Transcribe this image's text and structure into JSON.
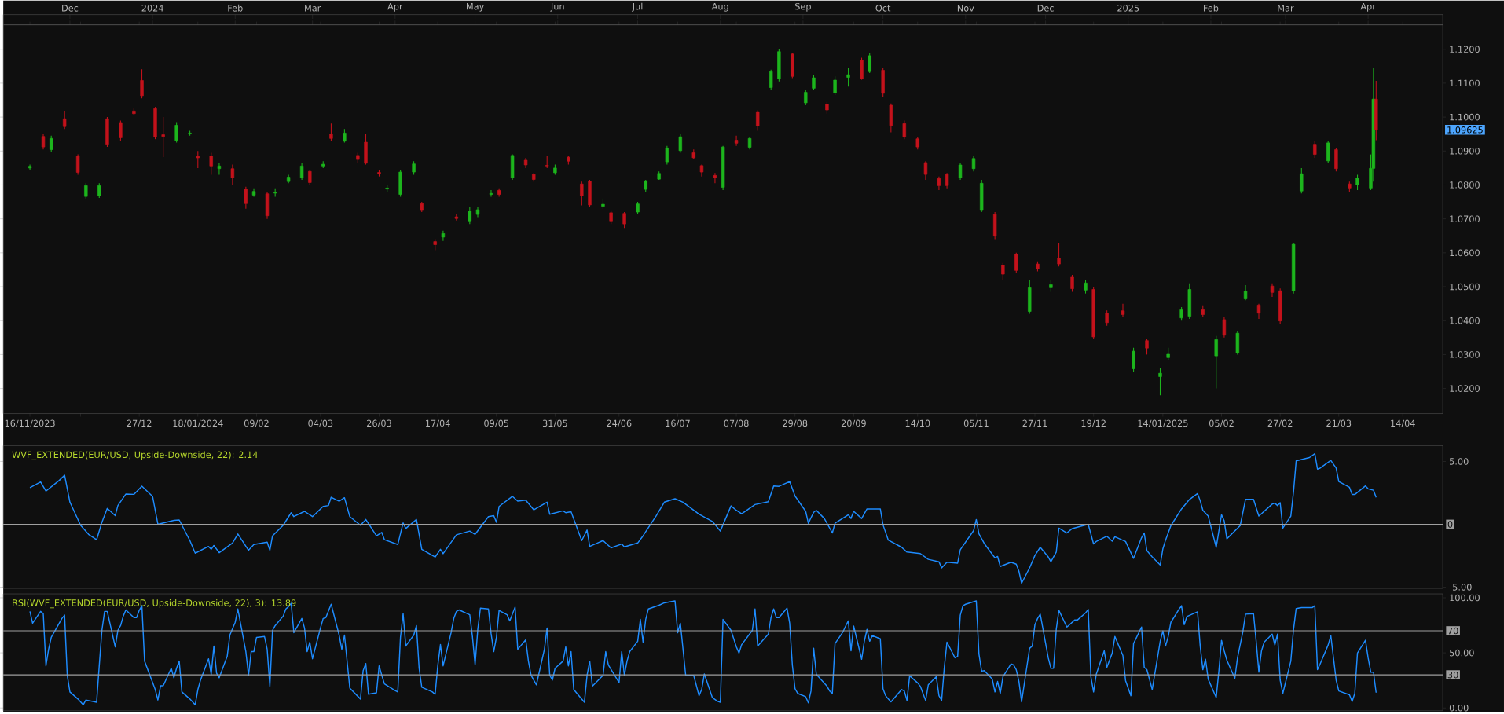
{
  "chart_data": [
    {
      "type": "candlestick",
      "x": [
        "2023-11-16",
        "2023-11-21",
        "2023-11-24",
        "2023-11-29",
        "2023-12-04",
        "2023-12-07",
        "2023-12-12",
        "2023-12-15",
        "2023-12-20",
        "2023-12-25",
        "2023-12-28",
        "2024-01-02",
        "2024-01-05",
        "2024-01-10",
        "2024-01-15",
        "2024-01-18",
        "2024-01-23",
        "2024-01-26",
        "2024-01-31",
        "2024-02-05",
        "2024-02-08",
        "2024-02-13",
        "2024-02-16",
        "2024-02-21",
        "2024-02-26",
        "2024-02-29",
        "2024-03-05",
        "2024-03-08",
        "2024-03-13",
        "2024-03-18",
        "2024-03-21",
        "2024-03-26",
        "2024-03-29",
        "2024-04-03",
        "2024-04-08",
        "2024-04-11",
        "2024-04-16",
        "2024-04-19",
        "2024-04-24",
        "2024-04-29",
        "2024-05-02",
        "2024-05-07",
        "2024-05-10",
        "2024-05-15",
        "2024-05-20",
        "2024-05-23",
        "2024-05-28",
        "2024-05-31",
        "2024-06-05",
        "2024-06-10",
        "2024-06-13",
        "2024-06-18",
        "2024-06-21",
        "2024-06-26",
        "2024-07-01",
        "2024-07-04",
        "2024-07-09",
        "2024-07-12",
        "2024-07-17",
        "2024-07-22",
        "2024-07-25",
        "2024-07-30",
        "2024-08-02",
        "2024-08-07",
        "2024-08-12",
        "2024-08-15",
        "2024-08-20",
        "2024-08-23",
        "2024-08-28",
        "2024-09-02",
        "2024-09-05",
        "2024-09-10",
        "2024-09-13",
        "2024-09-18",
        "2024-09-23",
        "2024-09-26",
        "2024-10-01",
        "2024-10-04",
        "2024-10-09",
        "2024-10-14",
        "2024-10-17",
        "2024-10-22",
        "2024-10-25",
        "2024-10-30",
        "2024-11-04",
        "2024-11-07",
        "2024-11-12",
        "2024-11-15",
        "2024-11-20",
        "2024-11-25",
        "2024-11-28",
        "2024-12-03",
        "2024-12-06",
        "2024-12-11",
        "2024-12-16",
        "2024-12-19",
        "2024-12-24",
        "2024-12-30",
        "2025-01-03",
        "2025-01-08",
        "2025-01-13",
        "2025-01-16",
        "2025-01-21",
        "2025-01-24",
        "2025-01-29",
        "2025-02-03",
        "2025-02-06",
        "2025-02-11",
        "2025-02-14",
        "2025-02-19",
        "2025-02-24",
        "2025-02-27",
        "2025-03-04",
        "2025-03-07",
        "2025-03-12",
        "2025-03-17",
        "2025-03-20",
        "2025-03-25",
        "2025-03-28",
        "2025-04-02",
        "2025-04-03",
        "2025-04-04"
      ],
      "ohlc": [
        [
          1.085,
          1.086,
          1.0845,
          1.0855
        ],
        [
          1.0943,
          1.095,
          1.0905,
          1.0912
        ],
        [
          1.0904,
          1.0945,
          1.0898,
          1.0937
        ],
        [
          1.0995,
          1.1019,
          1.0965,
          1.0972
        ],
        [
          1.0885,
          1.089,
          1.083,
          1.0837
        ],
        [
          1.0766,
          1.0805,
          1.076,
          1.0798
        ],
        [
          1.0768,
          1.0805,
          1.0762,
          1.0798
        ],
        [
          1.0995,
          1.1,
          1.0912,
          1.092
        ],
        [
          1.0984,
          1.099,
          1.093,
          1.0939
        ],
        [
          1.1018,
          1.1025,
          1.1005,
          1.101
        ],
        [
          1.1108,
          1.1141,
          1.1055,
          1.1063
        ],
        [
          1.1025,
          1.103,
          1.0935,
          1.0941
        ],
        [
          1.0948,
          1.1,
          1.0882,
          1.0943
        ],
        [
          1.0931,
          1.0985,
          1.0925,
          1.0976
        ],
        [
          1.0952,
          1.096,
          1.0945,
          1.0953
        ],
        [
          1.0884,
          1.09,
          1.085,
          1.088
        ],
        [
          1.0885,
          1.0895,
          1.083,
          1.0856
        ],
        [
          1.0848,
          1.0865,
          1.083,
          1.0856
        ],
        [
          1.0848,
          1.086,
          1.08,
          1.0821
        ],
        [
          1.0788,
          1.0795,
          1.073,
          1.0745
        ],
        [
          1.077,
          1.079,
          1.0765,
          1.0781
        ],
        [
          1.0774,
          1.078,
          1.07,
          1.0709
        ],
        [
          1.0776,
          1.079,
          1.0765,
          1.0779
        ],
        [
          1.081,
          1.083,
          1.0805,
          1.0823
        ],
        [
          1.0821,
          1.0865,
          1.0815,
          1.0856
        ],
        [
          1.084,
          1.0845,
          1.08,
          1.0807
        ],
        [
          1.0856,
          1.087,
          1.085,
          1.0861
        ],
        [
          1.095,
          1.0981,
          1.093,
          1.0937
        ],
        [
          1.0929,
          1.0965,
          1.0925,
          1.0953
        ],
        [
          1.0887,
          1.0895,
          1.0865,
          1.0875
        ],
        [
          1.0926,
          1.095,
          1.086,
          1.0864
        ],
        [
          1.0837,
          1.0845,
          1.0825,
          1.0833
        ],
        [
          1.0788,
          1.08,
          1.078,
          1.0791
        ],
        [
          1.0772,
          1.0845,
          1.0765,
          1.0838
        ],
        [
          1.0838,
          1.087,
          1.083,
          1.0862
        ],
        [
          1.0745,
          1.075,
          1.072,
          1.0727
        ],
        [
          1.0633,
          1.064,
          1.0608,
          1.0624
        ],
        [
          1.0646,
          1.0665,
          1.0635,
          1.0657
        ],
        [
          1.0706,
          1.0715,
          1.0695,
          1.0701
        ],
        [
          1.0694,
          1.0735,
          1.0685,
          1.0723
        ],
        [
          1.0713,
          1.0735,
          1.0705,
          1.0727
        ],
        [
          1.0772,
          1.0785,
          1.0765,
          1.0775
        ],
        [
          1.0784,
          1.079,
          1.0765,
          1.0772
        ],
        [
          1.0821,
          1.089,
          1.0815,
          1.0887
        ],
        [
          1.0873,
          1.088,
          1.085,
          1.0859
        ],
        [
          1.0831,
          1.0835,
          1.081,
          1.0816
        ],
        [
          1.0858,
          1.0885,
          1.085,
          1.0856
        ],
        [
          1.0836,
          1.086,
          1.083,
          1.085
        ],
        [
          1.0882,
          1.0885,
          1.086,
          1.087
        ],
        [
          1.0803,
          1.081,
          1.074,
          1.0768
        ],
        [
          1.0811,
          1.0815,
          1.0735,
          1.0741
        ],
        [
          1.0737,
          1.076,
          1.073,
          1.0743
        ],
        [
          1.0718,
          1.0725,
          1.0685,
          1.0694
        ],
        [
          1.0716,
          1.072,
          1.0673,
          1.0685
        ],
        [
          1.072,
          1.075,
          1.0715,
          1.0744
        ],
        [
          1.0787,
          1.0815,
          1.078,
          1.0812
        ],
        [
          1.0817,
          1.084,
          1.0815,
          1.0834
        ],
        [
          1.0868,
          1.0915,
          1.086,
          1.0909
        ],
        [
          1.0901,
          1.095,
          1.0895,
          1.0942
        ],
        [
          1.0895,
          1.0905,
          1.0875,
          1.088
        ],
        [
          1.0857,
          1.086,
          1.0825,
          1.0838
        ],
        [
          1.0828,
          1.0835,
          1.0805,
          1.0821
        ],
        [
          1.0793,
          1.0915,
          1.0785,
          1.0912
        ],
        [
          1.0932,
          1.0945,
          1.0915,
          1.0923
        ],
        [
          1.0911,
          1.094,
          1.0905,
          1.0937
        ],
        [
          1.1016,
          1.102,
          1.096,
          1.0974
        ],
        [
          1.1087,
          1.114,
          1.108,
          1.1134
        ],
        [
          1.1113,
          1.12,
          1.1105,
          1.1193
        ],
        [
          1.1186,
          1.119,
          1.1115,
          1.112
        ],
        [
          1.1042,
          1.108,
          1.1035,
          1.1073
        ],
        [
          1.1085,
          1.1125,
          1.108,
          1.1116
        ],
        [
          1.1038,
          1.1045,
          1.101,
          1.1021
        ],
        [
          1.1072,
          1.112,
          1.1065,
          1.1109
        ],
        [
          1.1117,
          1.1145,
          1.109,
          1.1125
        ],
        [
          1.1167,
          1.1175,
          1.111,
          1.1113
        ],
        [
          1.1134,
          1.119,
          1.113,
          1.1181
        ],
        [
          1.1138,
          1.1145,
          1.106,
          1.107
        ],
        [
          1.1035,
          1.104,
          1.0955,
          1.0975
        ],
        [
          1.0981,
          1.099,
          1.0935,
          1.0941
        ],
        [
          1.0936,
          1.094,
          1.0905,
          1.0912
        ],
        [
          1.0866,
          1.087,
          1.0815,
          1.0831
        ],
        [
          1.0819,
          1.0825,
          1.0785,
          1.0798
        ],
        [
          1.0831,
          1.0835,
          1.079,
          1.0798
        ],
        [
          1.0821,
          1.0865,
          1.0815,
          1.0859
        ],
        [
          1.0848,
          1.0885,
          1.084,
          1.0878
        ],
        [
          1.0727,
          1.0815,
          1.072,
          1.0805
        ],
        [
          1.0713,
          1.072,
          1.064,
          1.0649
        ],
        [
          1.0563,
          1.057,
          1.052,
          1.0537
        ],
        [
          1.0595,
          1.06,
          1.054,
          1.0548
        ],
        [
          1.0427,
          1.052,
          1.042,
          1.0497
        ],
        [
          1.0567,
          1.0575,
          1.0545,
          1.0553
        ],
        [
          1.0497,
          1.052,
          1.0485,
          1.0506
        ],
        [
          1.0584,
          1.063,
          1.056,
          1.0567
        ],
        [
          1.0528,
          1.0535,
          1.0485,
          1.0494
        ],
        [
          1.049,
          1.052,
          1.048,
          1.0511
        ],
        [
          1.0492,
          1.05,
          1.0345,
          1.0352
        ],
        [
          1.0422,
          1.043,
          1.0385,
          1.0394
        ],
        [
          1.0429,
          1.045,
          1.041,
          1.0418
        ],
        [
          1.0258,
          1.032,
          1.025,
          1.031
        ],
        [
          1.0341,
          1.0345,
          1.03,
          1.0319
        ],
        [
          1.0235,
          1.026,
          1.018,
          1.0245
        ],
        [
          1.0291,
          1.032,
          1.0285,
          1.0301
        ],
        [
          1.0408,
          1.044,
          1.04,
          1.0432
        ],
        [
          1.0413,
          1.051,
          1.0405,
          1.0492
        ],
        [
          1.0432,
          1.0445,
          1.041,
          1.0418
        ],
        [
          1.0296,
          1.0355,
          1.02,
          1.0344
        ],
        [
          1.0403,
          1.041,
          1.035,
          1.0357
        ],
        [
          1.0305,
          1.037,
          1.03,
          1.0363
        ],
        [
          1.0464,
          1.0505,
          1.046,
          1.0487
        ],
        [
          1.0446,
          1.045,
          1.0405,
          1.0422
        ],
        [
          1.0502,
          1.051,
          1.047,
          1.0483
        ],
        [
          1.0488,
          1.0495,
          1.039,
          1.0399
        ],
        [
          1.0488,
          1.063,
          1.048,
          1.0625
        ],
        [
          1.0782,
          1.085,
          1.0775,
          1.0833
        ],
        [
          1.092,
          1.093,
          1.088,
          1.089
        ],
        [
          1.0871,
          1.093,
          1.0865,
          1.0924
        ],
        [
          1.0904,
          1.091,
          1.084,
          1.0848
        ],
        [
          1.0803,
          1.081,
          1.078,
          1.0791
        ],
        [
          1.0801,
          1.083,
          1.0785,
          1.082
        ],
        [
          1.0791,
          1.089,
          1.0785,
          1.0849
        ],
        [
          1.0849,
          1.1145,
          1.081,
          1.1053
        ],
        [
          1.1053,
          1.1107,
          1.0932,
          1.09625
        ]
      ],
      "xlim": [
        "2023-11-06",
        "2025-04-29"
      ],
      "xticks": [
        {
          "value": "2023-11-16",
          "label": "16/11/2023"
        },
        {
          "value": "2023-12-05",
          "label": null
        },
        {
          "value": "2023-12-27",
          "label": "27/12"
        },
        {
          "value": "2024-01-18",
          "label": "18/01/2024"
        },
        {
          "value": "2024-02-09",
          "label": "09/02"
        },
        {
          "value": "2024-03-04",
          "label": "04/03"
        },
        {
          "value": "2024-03-26",
          "label": "26/03"
        },
        {
          "value": "2024-04-17",
          "label": "17/04"
        },
        {
          "value": "2024-05-09",
          "label": "09/05"
        },
        {
          "value": "2024-05-31",
          "label": "31/05"
        },
        {
          "value": "2024-06-24",
          "label": "24/06"
        },
        {
          "value": "2024-07-16",
          "label": "16/07"
        },
        {
          "value": "2024-08-07",
          "label": "07/08"
        },
        {
          "value": "2024-08-29",
          "label": "29/08"
        },
        {
          "value": "2024-09-20",
          "label": "20/09"
        },
        {
          "value": "2024-10-14",
          "label": "14/10"
        },
        {
          "value": "2024-11-05",
          "label": "05/11"
        },
        {
          "value": "2024-11-27",
          "label": "27/11"
        },
        {
          "value": "2024-12-19",
          "label": "19/12"
        },
        {
          "value": "2025-01-14",
          "label": "14/01/2025"
        },
        {
          "value": "2025-02-05",
          "label": "05/02"
        },
        {
          "value": "2025-02-27",
          "label": "27/02"
        },
        {
          "value": "2025-03-21",
          "label": "21/03"
        },
        {
          "value": "2025-04-14",
          "label": "14/04"
        }
      ],
      "x2lim": [
        "2023-11-06",
        "2025-04-29"
      ],
      "x2ticks": [
        {
          "value": "2023-12-01",
          "label": "Dec"
        },
        {
          "value": "2024-01-01",
          "label": "2024"
        },
        {
          "value": "2024-02-01",
          "label": "Feb"
        },
        {
          "value": "2024-03-01",
          "label": "Mar"
        },
        {
          "value": "2024-04-01",
          "label": "Apr"
        },
        {
          "value": "2024-05-01",
          "label": "May"
        },
        {
          "value": "2024-06-01",
          "label": "Jun"
        },
        {
          "value": "2024-07-01",
          "label": "Jul"
        },
        {
          "value": "2024-08-01",
          "label": "Aug"
        },
        {
          "value": "2024-09-01",
          "label": "Sep"
        },
        {
          "value": "2024-10-01",
          "label": "Oct"
        },
        {
          "value": "2024-11-01",
          "label": "Nov"
        },
        {
          "value": "2024-12-01",
          "label": "Dec"
        },
        {
          "value": "2025-01-01",
          "label": "2025"
        },
        {
          "value": "2025-02-01",
          "label": "Feb"
        },
        {
          "value": "2025-03-01",
          "label": "Mar"
        },
        {
          "value": "2025-04-01",
          "label": "Apr"
        }
      ],
      "ylim": [
        1.0126,
        1.1272
      ],
      "yticks": [
        {
          "value": 1.02,
          "label": "1.0200"
        },
        {
          "value": 1.03,
          "label": "1.0300"
        },
        {
          "value": 1.04,
          "label": "1.0400"
        },
        {
          "value": 1.05,
          "label": "1.0500"
        },
        {
          "value": 1.06,
          "label": "1.0600"
        },
        {
          "value": 1.07,
          "label": "1.0700"
        },
        {
          "value": 1.08,
          "label": "1.0800"
        },
        {
          "value": 1.09,
          "label": "1.0900"
        },
        {
          "value": 1.1,
          "label": "1.1000"
        },
        {
          "value": 1.11,
          "label": "1.1100"
        },
        {
          "value": 1.12,
          "label": "1.1200"
        }
      ],
      "annotations": [
        "1.09625"
      ]
    },
    {
      "type": "line",
      "title": "WVF_EXTENDED(EUR/USD, Upside-Downside, 22): 2.14",
      "color": "#1E8CFF",
      "x": [
        "2023-11-16",
        "2023-11-20",
        "2023-11-22",
        "2023-11-27",
        "2023-11-29",
        "2023-12-01",
        "2023-12-05",
        "2023-12-08",
        "2023-12-11",
        "2023-12-13",
        "2023-12-15",
        "2023-12-18",
        "2023-12-19",
        "2023-12-22",
        "2023-12-25",
        "2023-12-28",
        "2024-01-01",
        "2024-01-03",
        "2024-01-09",
        "2024-01-11",
        "2024-01-15",
        "2024-01-17",
        "2024-01-22",
        "2024-01-23",
        "2024-01-24",
        "2024-01-26",
        "2024-01-31",
        "2024-02-02",
        "2024-02-06",
        "2024-02-08",
        "2024-02-13",
        "2024-02-14",
        "2024-02-15",
        "2024-02-19",
        "2024-02-22",
        "2024-02-23",
        "2024-02-27",
        "2024-03-01",
        "2024-03-05",
        "2024-03-07",
        "2024-03-08",
        "2024-03-11",
        "2024-03-13",
        "2024-03-15",
        "2024-03-19",
        "2024-03-21",
        "2024-03-25",
        "2024-03-27",
        "2024-03-28",
        "2024-04-02",
        "2024-04-04",
        "2024-04-05",
        "2024-04-09",
        "2024-04-11",
        "2024-04-16",
        "2024-04-18",
        "2024-04-19",
        "2024-04-24",
        "2024-04-29",
        "2024-05-01",
        "2024-05-06",
        "2024-05-08",
        "2024-05-09",
        "2024-05-10",
        "2024-05-15",
        "2024-05-17",
        "2024-05-20",
        "2024-05-23",
        "2024-05-28",
        "2024-05-29",
        "2024-06-03",
        "2024-06-04",
        "2024-06-06",
        "2024-06-10",
        "2024-06-12",
        "2024-06-13",
        "2024-06-18",
        "2024-06-21",
        "2024-06-25",
        "2024-06-26",
        "2024-07-01",
        "2024-07-03",
        "2024-07-08",
        "2024-07-11",
        "2024-07-15",
        "2024-07-18",
        "2024-07-24",
        "2024-07-29",
        "2024-08-01",
        "2024-08-02",
        "2024-08-05",
        "2024-08-07",
        "2024-08-09",
        "2024-08-14",
        "2024-08-19",
        "2024-08-21",
        "2024-08-23",
        "2024-08-27",
        "2024-08-29",
        "2024-09-02",
        "2024-09-03",
        "2024-09-05",
        "2024-09-06",
        "2024-09-09",
        "2024-09-12",
        "2024-09-13",
        "2024-09-18",
        "2024-09-19",
        "2024-09-20",
        "2024-09-23",
        "2024-09-25",
        "2024-09-30",
        "2024-10-01",
        "2024-10-03",
        "2024-10-08",
        "2024-10-10",
        "2024-10-15",
        "2024-10-18",
        "2024-10-22",
        "2024-10-23",
        "2024-10-25",
        "2024-10-29",
        "2024-10-30",
        "2024-11-04",
        "2024-11-05",
        "2024-11-06",
        "2024-11-08",
        "2024-11-12",
        "2024-11-13",
        "2024-11-14",
        "2024-11-18",
        "2024-11-20",
        "2024-11-21",
        "2024-11-22",
        "2024-11-25",
        "2024-11-27",
        "2024-11-29",
        "2024-12-02",
        "2024-12-03",
        "2024-12-05",
        "2024-12-06",
        "2024-12-09",
        "2024-12-11",
        "2024-12-17",
        "2024-12-19",
        "2024-12-20",
        "2024-12-24",
        "2024-12-26",
        "2024-12-27",
        "2024-12-31",
        "2025-01-03",
        "2025-01-06",
        "2025-01-07",
        "2025-01-08",
        "2025-01-10",
        "2025-01-13",
        "2025-01-14",
        "2025-01-15",
        "2025-01-17",
        "2025-01-21",
        "2025-01-24",
        "2025-01-27",
        "2025-01-28",
        "2025-01-29",
        "2025-01-31",
        "2025-02-03",
        "2025-02-05",
        "2025-02-06",
        "2025-02-07",
        "2025-02-12",
        "2025-02-14",
        "2025-02-17",
        "2025-02-19",
        "2025-02-24",
        "2025-02-25",
        "2025-02-26",
        "2025-02-27",
        "2025-02-28",
        "2025-03-03",
        "2025-03-04",
        "2025-03-05",
        "2025-03-10",
        "2025-03-12",
        "2025-03-13",
        "2025-03-14",
        "2025-03-18",
        "2025-03-20",
        "2025-03-21",
        "2025-03-25",
        "2025-03-26",
        "2025-03-27",
        "2025-03-31",
        "2025-04-01",
        "2025-04-03",
        "2025-04-04"
      ],
      "values": [
        2.91,
        3.37,
        2.64,
        3.49,
        3.91,
        1.76,
        -0.08,
        -0.8,
        -1.23,
        0.15,
        1.26,
        0.69,
        1.49,
        2.41,
        2.38,
        3.03,
        2.22,
        0,
        0.31,
        0.34,
        -1.3,
        -2.3,
        -1.76,
        -1.99,
        -1.69,
        -2.26,
        -1.49,
        -0.77,
        -2.07,
        -1.61,
        -1.42,
        -2.07,
        -0.92,
        -0.08,
        0.92,
        0.61,
        1.03,
        0.61,
        1.42,
        1.49,
        2.15,
        1.84,
        2.11,
        0.61,
        -0.08,
        0.38,
        -0.92,
        -0.65,
        -1.23,
        -1.61,
        0.11,
        -0.34,
        0.38,
        -1.99,
        -2.61,
        -1.99,
        -2.34,
        -0.84,
        -0.54,
        -0.8,
        0.61,
        0.69,
        0.15,
        1.42,
        2.22,
        1.84,
        1.92,
        1.15,
        1.76,
        0.8,
        1.07,
        0.92,
        1.0,
        -1.3,
        -0.46,
        -1.76,
        -1.3,
        -1.88,
        -1.57,
        -1.8,
        -1.49,
        -0.92,
        0.69,
        1.76,
        2.03,
        1.76,
        0.8,
        0.23,
        -0.54,
        -0.04,
        1.46,
        1.11,
        0.84,
        1.57,
        1.79,
        3.05,
        3.02,
        3.4,
        2.25,
        1.03,
        0.08,
        0.95,
        1.11,
        0.46,
        -0.69,
        0.08,
        0.76,
        0.46,
        1.03,
        0.46,
        1.22,
        1.22,
        -0.04,
        -1.26,
        -1.83,
        -2.21,
        -2.33,
        -2.79,
        -2.98,
        -3.47,
        -3.02,
        -3.09,
        -2.02,
        -0.5,
        0.38,
        -0.76,
        -1.53,
        -2.67,
        -2.56,
        -3.36,
        -3.02,
        -3.17,
        -3.74,
        -4.69,
        -3.47,
        -2.48,
        -1.83,
        -2.6,
        -2.98,
        -2.21,
        -0.31,
        -0.69,
        -0.34,
        0,
        -1.56,
        -1.37,
        -0.95,
        -1.34,
        -0.99,
        -1.37,
        -2.71,
        -1.07,
        -0.69,
        -2.1,
        -2.6,
        -3.24,
        -1.95,
        -1.26,
        -0.11,
        1.22,
        1.98,
        2.44,
        1.87,
        1.11,
        0.65,
        -1.83,
        0.76,
        0.27,
        -1.15,
        -0.11,
        1.98,
        1.98,
        0.65,
        1.6,
        1.68,
        1.49,
        1.72,
        -0.31,
        0.65,
        2.56,
        5.04,
        5.31,
        5.61,
        4.39,
        4.47,
        5.08,
        4.47,
        3.4,
        2.94,
        2.37,
        2.37,
        3.05,
        2.82,
        2.71,
        2.14
      ],
      "xlim": [
        "2023-11-06",
        "2025-04-29"
      ],
      "ylim": [
        -5.1,
        6.25
      ],
      "yticks": [
        {
          "value": -5,
          "label": "-5.00"
        },
        {
          "value": 5,
          "label": "5.00"
        }
      ],
      "ref_lines": [
        {
          "axis": "y",
          "value": 0,
          "label": "0",
          "color": "#A0A0A0"
        }
      ],
      "tick_labels": "y"
    },
    {
      "type": "line",
      "title": "RSI(WVF_EXTENDED(EUR/USD, Upside-Downside, 22), 3): 13.89",
      "color": "#1E8CFF",
      "x": [
        "2023-11-16",
        "2023-11-17",
        "2023-11-20",
        "2023-11-21",
        "2023-11-22",
        "2023-11-23",
        "2023-11-24",
        "2023-11-28",
        "2023-11-29",
        "2023-11-30",
        "2023-12-01",
        "2023-12-04",
        "2023-12-06",
        "2023-12-07",
        "2023-12-11",
        "2023-12-12",
        "2023-12-13",
        "2023-12-14",
        "2023-12-15",
        "2023-12-18",
        "2023-12-19",
        "2023-12-20",
        "2023-12-21",
        "2023-12-22",
        "2023-12-25",
        "2023-12-26",
        "2023-12-27",
        "2023-12-28",
        "2023-12-29",
        "2024-01-02",
        "2024-01-03",
        "2024-01-04",
        "2024-01-05",
        "2024-01-08",
        "2024-01-09",
        "2024-01-10",
        "2024-01-11",
        "2024-01-12",
        "2024-01-15",
        "2024-01-17",
        "2024-01-18",
        "2024-01-19",
        "2024-01-22",
        "2024-01-23",
        "2024-01-24",
        "2024-01-25",
        "2024-01-26",
        "2024-01-29",
        "2024-01-30",
        "2024-02-01",
        "2024-02-02",
        "2024-02-05",
        "2024-02-06",
        "2024-02-07",
        "2024-02-08",
        "2024-02-09",
        "2024-02-12",
        "2024-02-13",
        "2024-02-14",
        "2024-02-15",
        "2024-02-16",
        "2024-02-19",
        "2024-02-20",
        "2024-02-21",
        "2024-02-22",
        "2024-02-23",
        "2024-02-26",
        "2024-02-27",
        "2024-02-28",
        "2024-02-29",
        "2024-03-01",
        "2024-03-04",
        "2024-03-05",
        "2024-03-06",
        "2024-03-08",
        "2024-03-11",
        "2024-03-12",
        "2024-03-13",
        "2024-03-15",
        "2024-03-19",
        "2024-03-20",
        "2024-03-21",
        "2024-03-22",
        "2024-03-25",
        "2024-03-26",
        "2024-03-27",
        "2024-03-28",
        "2024-04-01",
        "2024-04-02",
        "2024-04-03",
        "2024-04-04",
        "2024-04-05",
        "2024-04-08",
        "2024-04-09",
        "2024-04-10",
        "2024-04-11",
        "2024-04-15",
        "2024-04-16",
        "2024-04-17",
        "2024-04-18",
        "2024-04-19",
        "2024-04-22",
        "2024-04-23",
        "2024-04-24",
        "2024-04-25",
        "2024-04-29",
        "2024-04-30",
        "2024-05-01",
        "2024-05-02",
        "2024-05-03",
        "2024-05-06",
        "2024-05-07",
        "2024-05-08",
        "2024-05-09",
        "2024-05-10",
        "2024-05-13",
        "2024-05-14",
        "2024-05-16",
        "2024-05-17",
        "2024-05-20",
        "2024-05-21",
        "2024-05-22",
        "2024-05-24",
        "2024-05-27",
        "2024-05-28",
        "2024-05-29",
        "2024-05-30",
        "2024-05-31",
        "2024-06-03",
        "2024-06-04",
        "2024-06-05",
        "2024-06-06",
        "2024-06-07",
        "2024-06-11",
        "2024-06-12",
        "2024-06-13",
        "2024-06-14",
        "2024-06-18",
        "2024-06-19",
        "2024-06-20",
        "2024-06-24",
        "2024-06-25",
        "2024-06-26",
        "2024-06-27",
        "2024-06-28",
        "2024-07-01",
        "2024-07-02",
        "2024-07-03",
        "2024-07-04",
        "2024-07-05",
        "2024-07-09",
        "2024-07-11",
        "2024-07-15",
        "2024-07-16",
        "2024-07-17",
        "2024-07-19",
        "2024-07-22",
        "2024-07-24",
        "2024-07-25",
        "2024-07-26",
        "2024-07-29",
        "2024-07-31",
        "2024-08-01",
        "2024-08-02",
        "2024-08-05",
        "2024-08-07",
        "2024-08-08",
        "2024-08-09",
        "2024-08-13",
        "2024-08-14",
        "2024-08-15",
        "2024-08-19",
        "2024-08-20",
        "2024-08-21",
        "2024-08-22",
        "2024-08-23",
        "2024-08-26",
        "2024-08-27",
        "2024-08-28",
        "2024-08-29",
        "2024-08-30",
        "2024-09-02",
        "2024-09-03",
        "2024-09-04",
        "2024-09-05",
        "2024-09-06",
        "2024-09-10",
        "2024-09-11",
        "2024-09-12",
        "2024-09-13",
        "2024-09-16",
        "2024-09-17",
        "2024-09-18",
        "2024-09-19",
        "2024-09-20",
        "2024-09-23",
        "2024-09-24",
        "2024-09-25",
        "2024-09-26",
        "2024-09-27",
        "2024-09-30",
        "2024-10-01",
        "2024-10-02",
        "2024-10-03",
        "2024-10-04",
        "2024-10-08",
        "2024-10-09",
        "2024-10-10",
        "2024-10-11",
        "2024-10-14",
        "2024-10-15",
        "2024-10-16",
        "2024-10-17",
        "2024-10-18",
        "2024-10-21",
        "2024-10-22",
        "2024-10-23",
        "2024-10-24",
        "2024-10-25",
        "2024-10-28",
        "2024-10-29",
        "2024-10-30",
        "2024-10-31",
        "2024-11-01",
        "2024-11-05",
        "2024-11-06",
        "2024-11-07",
        "2024-11-08",
        "2024-11-11",
        "2024-11-12",
        "2024-11-13",
        "2024-11-14",
        "2024-11-15",
        "2024-11-18",
        "2024-11-19",
        "2024-11-20",
        "2024-11-21",
        "2024-11-22",
        "2024-11-25",
        "2024-11-26",
        "2024-11-27",
        "2024-11-28",
        "2024-11-29",
        "2024-12-02",
        "2024-12-03",
        "2024-12-04",
        "2024-12-05",
        "2024-12-06",
        "2024-12-09",
        "2024-12-10",
        "2024-12-12",
        "2024-12-13",
        "2024-12-16",
        "2024-12-17",
        "2024-12-18",
        "2024-12-19",
        "2024-12-20",
        "2024-12-23",
        "2024-12-24",
        "2024-12-26",
        "2024-12-27",
        "2024-12-30",
        "2024-12-31",
        "2025-01-02",
        "2025-01-03",
        "2025-01-06",
        "2025-01-07",
        "2025-01-08",
        "2025-01-10",
        "2025-01-13",
        "2025-01-14",
        "2025-01-15",
        "2025-01-16",
        "2025-01-17",
        "2025-01-20",
        "2025-01-21",
        "2025-01-22",
        "2025-01-23",
        "2025-01-27",
        "2025-01-28",
        "2025-01-29",
        "2025-01-30",
        "2025-01-31",
        "2025-02-03",
        "2025-02-04",
        "2025-02-05",
        "2025-02-06",
        "2025-02-07",
        "2025-02-10",
        "2025-02-11",
        "2025-02-13",
        "2025-02-14",
        "2025-02-17",
        "2025-02-18",
        "2025-02-19",
        "2025-02-20",
        "2025-02-21",
        "2025-02-24",
        "2025-02-25",
        "2025-02-26",
        "2025-02-27",
        "2025-02-28",
        "2025-03-03",
        "2025-03-04",
        "2025-03-05",
        "2025-03-07",
        "2025-03-11",
        "2025-03-12",
        "2025-03-13",
        "2025-03-14",
        "2025-03-17",
        "2025-03-18",
        "2025-03-19",
        "2025-03-20",
        "2025-03-21",
        "2025-03-25",
        "2025-03-26",
        "2025-03-27",
        "2025-03-28",
        "2025-03-31",
        "2025-04-01",
        "2025-04-02",
        "2025-04-03",
        "2025-04-04"
      ],
      "values": [
        87.6,
        76.9,
        87.6,
        85.5,
        38.2,
        53.2,
        64.0,
        81.2,
        84.2,
        29.6,
        14.5,
        8.1,
        2.9,
        7.2,
        5.1,
        38.2,
        70.4,
        87.6,
        87.6,
        55.4,
        70.4,
        74.7,
        83.3,
        88.9,
        82.0,
        82.0,
        88.5,
        92.8,
        42.5,
        16.7,
        7.2,
        20.1,
        20.1,
        36.0,
        27.4,
        36.0,
        42.5,
        14.5,
        8.1,
        2.9,
        16.7,
        25.3,
        44.6,
        30.4,
        56.2,
        31.7,
        27.4,
        46.8,
        66.1,
        77.7,
        89.8,
        51.1,
        29.6,
        51.1,
        51.1,
        64.0,
        64.8,
        53.2,
        19.7,
        70.4,
        74.7,
        83.3,
        89.8,
        91.9,
        94.9,
        68.3,
        81.2,
        72.6,
        51.1,
        59.7,
        44.6,
        72.6,
        81.2,
        82.0,
        94.1,
        66.1,
        53.2,
        66.1,
        18.0,
        8.1,
        33.9,
        40.3,
        12.4,
        13.7,
        38.2,
        29.6,
        21.8,
        15.8,
        14.5,
        64.0,
        85.5,
        56.2,
        66.1,
        74.7,
        36.0,
        18.8,
        14.5,
        12.4,
        38.2,
        57.5,
        38.2,
        68.3,
        81.2,
        87.6,
        88.9,
        84.6,
        64.8,
        39.0,
        71.3,
        90.6,
        89.8,
        67.4,
        51.1,
        64.0,
        88.5,
        84.6,
        79.0,
        91.5,
        53.2,
        61.8,
        42.5,
        29.6,
        21.0,
        53.2,
        72.6,
        29.6,
        25.3,
        36.0,
        42.5,
        55.4,
        38.2,
        51.1,
        16.7,
        5.1,
        29.6,
        42.5,
        19.7,
        29.6,
        51.1,
        39.0,
        23.1,
        51.1,
        29.6,
        42.5,
        51.1,
        60.5,
        80.3,
        59.7,
        80.3,
        89.8,
        93.2,
        95.4,
        97.1,
        68.3,
        76.9,
        29.6,
        29.6,
        11.1,
        16.7,
        30.9,
        9.4,
        6.0,
        5.1,
        80.3,
        70.4,
        55.4,
        49.8,
        57.5,
        70.4,
        89.8,
        56.2,
        67.0,
        82.0,
        89.8,
        82.0,
        82.0,
        90.6,
        76.9,
        39.0,
        17.5,
        13.2,
        10.2,
        4.6,
        15.4,
        54.1,
        30.4,
        19.7,
        15.4,
        13.2,
        58.4,
        69.1,
        74.3,
        79.0,
        51.9,
        74.3,
        44.2,
        60.5,
        71.3,
        60.5,
        65.7,
        62.7,
        17.5,
        11.1,
        8.1,
        5.5,
        16.7,
        15.4,
        6.8,
        29.1,
        22.7,
        19.7,
        13.2,
        6.8,
        21.0,
        28.3,
        11.1,
        6.8,
        36.9,
        59.7,
        45.5,
        46.8,
        84.2,
        92.8,
        94.1,
        97.1,
        48.9,
        33.4,
        33.9,
        26.1,
        14.5,
        24.0,
        13.2,
        28.3,
        39.9,
        39.0,
        34.7,
        24.0,
        5.5,
        54.1,
        56.2,
        75.6,
        81.2,
        85.1,
        45.5,
        36.0,
        36.0,
        71.3,
        88.5,
        73.4,
        75.6,
        79.9,
        79.9,
        86.3,
        89.4,
        28.3,
        14.5,
        30.4,
        51.9,
        36.9,
        49.8,
        64.8,
        47.6,
        24.8,
        11.1,
        58.4,
        73.4,
        36.9,
        34.7,
        16.7,
        60.5,
        69.9,
        56.2,
        64.8,
        77.7,
        89.4,
        92.8,
        75.6,
        82.9,
        87.2,
        56.2,
        34.7,
        44.2,
        26.1,
        9.4,
        33.4,
        61.4,
        51.9,
        43.3,
        26.9,
        45.5,
        69.1,
        85.1,
        85.5,
        60.5,
        32.5,
        51.9,
        59.7,
        67.0,
        57.1,
        67.0,
        25.3,
        13.2,
        42.5,
        70.9,
        90.2,
        91.0,
        91.0,
        92.8,
        34.7,
        39.9,
        57.1,
        65.7,
        45.5,
        25.3,
        15.4,
        11.9,
        5.9,
        13.2,
        49.8,
        61.4,
        45.5,
        32.5,
        32.5,
        13.9
      ],
      "xlim": [
        "2023-11-06",
        "2025-04-29"
      ],
      "ylim": [
        -2.5,
        103.5
      ],
      "yticks": [
        {
          "value": 0,
          "label": "0.00"
        },
        {
          "value": 50,
          "label": "50.00"
        },
        {
          "value": 100,
          "label": "100.00"
        }
      ],
      "ref_lines": [
        {
          "axis": "y",
          "value": 70,
          "label": "70",
          "color": "#A0A0A0"
        },
        {
          "axis": "y",
          "value": 30,
          "label": "30",
          "color": "#A0A0A0"
        }
      ],
      "tick_labels": "y"
    }
  ]
}
